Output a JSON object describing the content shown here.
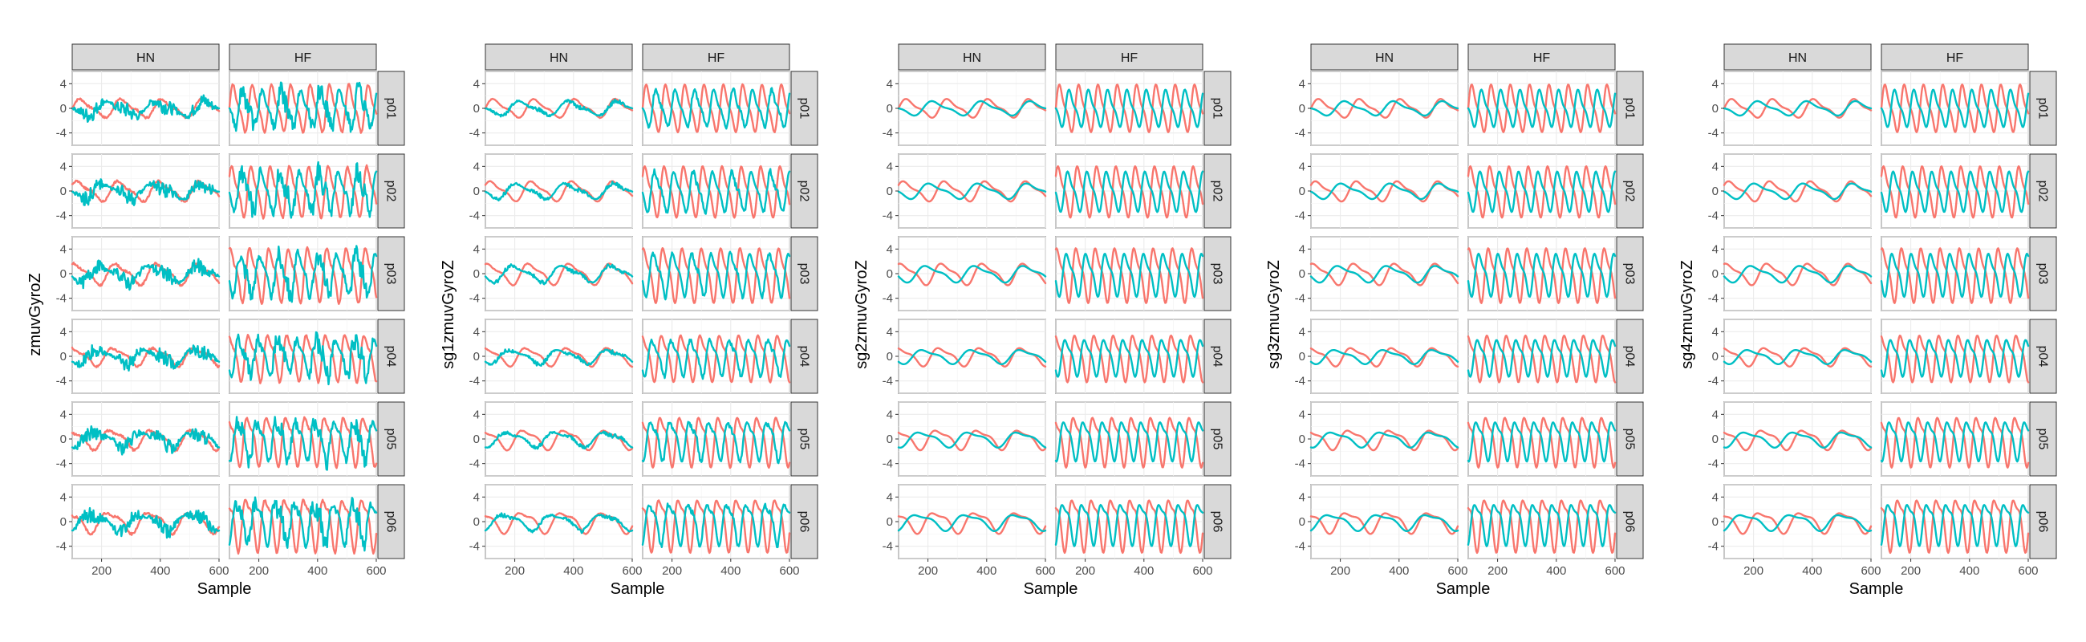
{
  "colors": {
    "series_red": "#F8766D",
    "series_teal": "#00BFC4",
    "strip": "#D9D9D9"
  },
  "chart_data": [
    {
      "type": "line",
      "xlabel": "Sample",
      "ylabel": "zmuvGyroZ",
      "columns": [
        "HN",
        "HF"
      ],
      "rows": [
        "p01",
        "p02",
        "p03",
        "p04",
        "p05",
        "p06"
      ],
      "xlim": [
        100,
        600
      ],
      "ylim": [
        -6,
        6
      ],
      "xticks": [
        200,
        400,
        600
      ],
      "yticks": [
        4,
        0,
        -4
      ],
      "ytick_labels": [
        "4",
        "0",
        "-4"
      ],
      "legend": "none",
      "grid": true,
      "noise": 0.9
    },
    {
      "type": "line",
      "xlabel": "Sample",
      "ylabel": "sg1zmuvGyroZ",
      "columns": [
        "HN",
        "HF"
      ],
      "rows": [
        "p01",
        "p02",
        "p03",
        "p04",
        "p05",
        "p06"
      ],
      "xlim": [
        100,
        600
      ],
      "ylim": [
        -6,
        6
      ],
      "xticks": [
        200,
        400,
        600
      ],
      "yticks": [
        4,
        0,
        -4
      ],
      "ytick_labels": [
        "4",
        "0",
        "-4"
      ],
      "legend": "none",
      "grid": true,
      "noise": 0.25
    },
    {
      "type": "line",
      "xlabel": "Sample",
      "ylabel": "sg2zmuvGyroZ",
      "columns": [
        "HN",
        "HF"
      ],
      "rows": [
        "p01",
        "p02",
        "p03",
        "p04",
        "p05",
        "p06"
      ],
      "xlim": [
        100,
        600
      ],
      "ylim": [
        -6,
        6
      ],
      "xticks": [
        200,
        400,
        600
      ],
      "yticks": [
        4,
        0,
        -4
      ],
      "ytick_labels": [
        "4",
        "0",
        "-4"
      ],
      "legend": "none",
      "grid": true,
      "noise": 0.0
    },
    {
      "type": "line",
      "xlabel": "Sample",
      "ylabel": "sg3zmuvGyroZ",
      "columns": [
        "HN",
        "HF"
      ],
      "rows": [
        "p01",
        "p02",
        "p03",
        "p04",
        "p05",
        "p06"
      ],
      "xlim": [
        100,
        600
      ],
      "ylim": [
        -6,
        6
      ],
      "xticks": [
        200,
        400,
        600
      ],
      "yticks": [
        4,
        0,
        -4
      ],
      "ytick_labels": [
        "4",
        "0",
        "-4"
      ],
      "legend": "none",
      "grid": true,
      "noise": 0.0
    },
    {
      "type": "line",
      "xlabel": "Sample",
      "ylabel": "sg4zmuvGyroZ",
      "columns": [
        "HN",
        "HF"
      ],
      "rows": [
        "p01",
        "p02",
        "p03",
        "p04",
        "p05",
        "p06"
      ],
      "xlim": [
        100,
        600
      ],
      "ylim": [
        -6,
        6
      ],
      "xticks": [
        200,
        400,
        600
      ],
      "yticks": [
        4,
        0,
        -4
      ],
      "ytick_labels": [
        "4",
        "0",
        "-4"
      ],
      "legend": "none",
      "grid": true,
      "noise": 0.0
    }
  ],
  "signals": {
    "HN": {
      "red": {
        "amplitude": 1.3,
        "cycles": 3.6,
        "phase": 0.0
      },
      "teal": {
        "amplitude": 1.0,
        "cycles": 3.0,
        "phase": 3.14
      }
    },
    "HF": {
      "red": {
        "amplitude": 3.3,
        "cycles": 7.6,
        "phase": 0.0
      },
      "teal": {
        "amplitude": 2.6,
        "cycles": 7.6,
        "phase": 3.14
      }
    }
  }
}
